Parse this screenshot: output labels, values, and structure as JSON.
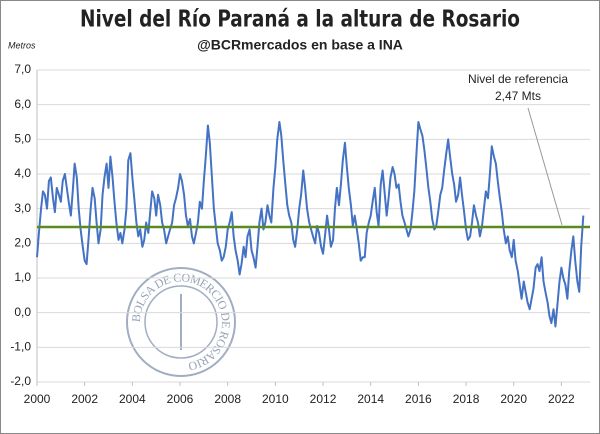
{
  "chart_data": {
    "type": "line",
    "title": "Nivel del Río Paraná a la altura de Rosario",
    "subtitle": "@BCRmercados en base a INA",
    "y_axis_label": "Metros",
    "watermark": "BOLSA DE COMERCIO DE ROSARIO",
    "xlim": [
      2000,
      2023.2
    ],
    "xticks": [
      2000,
      2002,
      2004,
      2006,
      2008,
      2010,
      2012,
      2014,
      2016,
      2018,
      2020,
      2022
    ],
    "ylim": [
      -2,
      7
    ],
    "yticks": [
      {
        "value": -2,
        "label": "-2,0"
      },
      {
        "value": -1,
        "label": "-1,0"
      },
      {
        "value": 0,
        "label": "0,0"
      },
      {
        "value": 1,
        "label": "1,0"
      },
      {
        "value": 2,
        "label": "2,0"
      },
      {
        "value": 3,
        "label": "3,0"
      },
      {
        "value": 4,
        "label": "4,0"
      },
      {
        "value": 5,
        "label": "5,0"
      },
      {
        "value": 6,
        "label": "6,0"
      },
      {
        "value": 7,
        "label": "7,0"
      }
    ],
    "grid": true,
    "reference_line": {
      "value": 2.47,
      "color": "#5a8a22",
      "label": [
        "Nivel de referencia",
        "2,47 Mts"
      ]
    },
    "x": [
      2000,
      2000.08,
      2000.17,
      2000.25,
      2000.33,
      2000.42,
      2000.5,
      2000.58,
      2000.67,
      2000.75,
      2000.83,
      2000.92,
      2001,
      2001.08,
      2001.17,
      2001.25,
      2001.33,
      2001.42,
      2001.5,
      2001.58,
      2001.67,
      2001.75,
      2001.83,
      2001.92,
      2002,
      2002.08,
      2002.17,
      2002.25,
      2002.33,
      2002.42,
      2002.5,
      2002.58,
      2002.67,
      2002.75,
      2002.83,
      2002.92,
      2003,
      2003.08,
      2003.17,
      2003.25,
      2003.33,
      2003.42,
      2003.5,
      2003.58,
      2003.67,
      2003.75,
      2003.83,
      2003.92,
      2004,
      2004.08,
      2004.17,
      2004.25,
      2004.33,
      2004.42,
      2004.5,
      2004.58,
      2004.67,
      2004.75,
      2004.83,
      2004.92,
      2005,
      2005.08,
      2005.17,
      2005.25,
      2005.33,
      2005.42,
      2005.5,
      2005.58,
      2005.67,
      2005.75,
      2005.83,
      2005.92,
      2006,
      2006.08,
      2006.17,
      2006.25,
      2006.33,
      2006.42,
      2006.5,
      2006.58,
      2006.67,
      2006.75,
      2006.83,
      2006.92,
      2007,
      2007.08,
      2007.17,
      2007.25,
      2007.33,
      2007.42,
      2007.5,
      2007.58,
      2007.67,
      2007.75,
      2007.83,
      2007.92,
      2008,
      2008.08,
      2008.17,
      2008.25,
      2008.33,
      2008.42,
      2008.5,
      2008.58,
      2008.67,
      2008.75,
      2008.83,
      2008.92,
      2009,
      2009.08,
      2009.17,
      2009.25,
      2009.33,
      2009.42,
      2009.5,
      2009.58,
      2009.67,
      2009.75,
      2009.83,
      2009.92,
      2010,
      2010.08,
      2010.17,
      2010.25,
      2010.33,
      2010.42,
      2010.5,
      2010.58,
      2010.67,
      2010.75,
      2010.83,
      2010.92,
      2011,
      2011.08,
      2011.17,
      2011.25,
      2011.33,
      2011.42,
      2011.5,
      2011.58,
      2011.67,
      2011.75,
      2011.83,
      2011.92,
      2012,
      2012.08,
      2012.17,
      2012.25,
      2012.33,
      2012.42,
      2012.5,
      2012.58,
      2012.67,
      2012.75,
      2012.83,
      2012.92,
      2013,
      2013.08,
      2013.17,
      2013.25,
      2013.33,
      2013.42,
      2013.5,
      2013.58,
      2013.67,
      2013.75,
      2013.83,
      2013.92,
      2014,
      2014.08,
      2014.17,
      2014.25,
      2014.33,
      2014.42,
      2014.5,
      2014.58,
      2014.67,
      2014.75,
      2014.83,
      2014.92,
      2015,
      2015.08,
      2015.17,
      2015.25,
      2015.33,
      2015.42,
      2015.5,
      2015.58,
      2015.67,
      2015.75,
      2015.83,
      2015.92,
      2016,
      2016.08,
      2016.17,
      2016.25,
      2016.33,
      2016.42,
      2016.5,
      2016.58,
      2016.67,
      2016.75,
      2016.83,
      2016.92,
      2017,
      2017.08,
      2017.17,
      2017.25,
      2017.33,
      2017.42,
      2017.5,
      2017.58,
      2017.67,
      2017.75,
      2017.83,
      2017.92,
      2018,
      2018.08,
      2018.17,
      2018.25,
      2018.33,
      2018.42,
      2018.5,
      2018.58,
      2018.67,
      2018.75,
      2018.83,
      2018.92,
      2019,
      2019.08,
      2019.17,
      2019.25,
      2019.33,
      2019.42,
      2019.5,
      2019.58,
      2019.67,
      2019.75,
      2019.83,
      2019.92,
      2020,
      2020.08,
      2020.17,
      2020.25,
      2020.33,
      2020.42,
      2020.5,
      2020.58,
      2020.67,
      2020.75,
      2020.83,
      2020.92,
      2021,
      2021.08,
      2021.17,
      2021.25,
      2021.33,
      2021.42,
      2021.5,
      2021.58,
      2021.67,
      2021.75,
      2021.83,
      2021.92,
      2022,
      2022.08,
      2022.17,
      2022.25,
      2022.33,
      2022.42,
      2022.5,
      2022.58,
      2022.67,
      2022.75,
      2022.83,
      2022.92
    ],
    "series": [
      {
        "color": "#4472c4",
        "values": [
          1.6,
          2.3,
          3.0,
          3.5,
          3.4,
          3.0,
          3.8,
          3.9,
          3.3,
          2.9,
          3.6,
          3.4,
          3.2,
          3.8,
          4.0,
          3.6,
          3.2,
          2.8,
          3.5,
          4.3,
          3.9,
          3.0,
          2.4,
          1.9,
          1.5,
          1.4,
          2.2,
          3.0,
          3.6,
          3.3,
          2.6,
          2.0,
          2.4,
          3.4,
          3.9,
          4.3,
          3.6,
          4.5,
          3.9,
          3.2,
          2.6,
          2.1,
          2.3,
          2.0,
          2.4,
          3.0,
          4.4,
          4.6,
          3.9,
          3.3,
          2.6,
          2.2,
          2.4,
          1.9,
          2.1,
          2.6,
          2.3,
          2.9,
          3.5,
          3.3,
          2.8,
          3.4,
          3.1,
          2.6,
          2.4,
          2.0,
          2.2,
          2.4,
          2.6,
          3.1,
          3.3,
          3.6,
          4.0,
          3.8,
          3.4,
          2.8,
          2.5,
          2.7,
          2.2,
          2.0,
          2.3,
          2.6,
          3.2,
          3.0,
          3.8,
          4.5,
          5.4,
          4.9,
          4.0,
          3.0,
          2.5,
          2.0,
          1.8,
          1.5,
          1.6,
          1.9,
          2.4,
          2.6,
          2.9,
          2.2,
          1.8,
          1.5,
          1.1,
          1.4,
          1.9,
          1.6,
          2.2,
          2.4,
          1.8,
          1.6,
          1.3,
          1.9,
          2.6,
          3.0,
          2.4,
          2.6,
          3.1,
          2.8,
          2.6,
          3.6,
          4.2,
          5.0,
          5.5,
          5.1,
          4.4,
          3.7,
          3.1,
          2.8,
          2.6,
          2.1,
          1.9,
          2.4,
          3.0,
          3.4,
          4.1,
          3.6,
          3.0,
          2.6,
          2.4,
          2.2,
          2.0,
          2.5,
          2.3,
          1.9,
          1.7,
          2.2,
          2.8,
          2.4,
          1.9,
          2.1,
          3.0,
          3.6,
          3.1,
          3.7,
          4.4,
          4.9,
          4.2,
          3.6,
          3.1,
          2.5,
          2.8,
          2.4,
          2.0,
          1.5,
          1.6,
          1.6,
          2.3,
          2.6,
          2.8,
          3.2,
          3.6,
          2.9,
          2.5,
          3.7,
          4.1,
          3.5,
          2.8,
          3.3,
          3.9,
          4.2,
          4.0,
          3.6,
          3.7,
          3.2,
          2.8,
          2.6,
          2.4,
          2.2,
          2.4,
          2.9,
          3.5,
          4.6,
          5.5,
          5.3,
          5.1,
          4.7,
          4.2,
          3.6,
          3.2,
          2.7,
          2.4,
          2.5,
          2.9,
          3.4,
          3.6,
          4.1,
          4.6,
          5.0,
          4.5,
          4.0,
          3.7,
          3.2,
          3.4,
          3.9,
          3.4,
          2.9,
          2.4,
          2.1,
          2.2,
          2.6,
          3.1,
          2.8,
          2.6,
          2.2,
          2.5,
          3.0,
          3.5,
          3.3,
          4.0,
          4.8,
          4.5,
          4.3,
          3.8,
          3.3,
          2.9,
          2.4,
          2.0,
          2.2,
          1.8,
          1.6,
          2.1,
          1.5,
          1.2,
          0.8,
          0.4,
          0.9,
          0.6,
          0.3,
          0.1,
          0.4,
          0.7,
          1.3,
          1.4,
          1.2,
          1.6,
          0.9,
          0.6,
          0.3,
          -0.1,
          -0.3,
          0.1,
          -0.4,
          0.2,
          0.9,
          1.3,
          1.0,
          0.8,
          0.4,
          1.2,
          1.8,
          2.2,
          1.5,
          0.9,
          0.6,
          1.9,
          2.8
        ]
      }
    ]
  }
}
